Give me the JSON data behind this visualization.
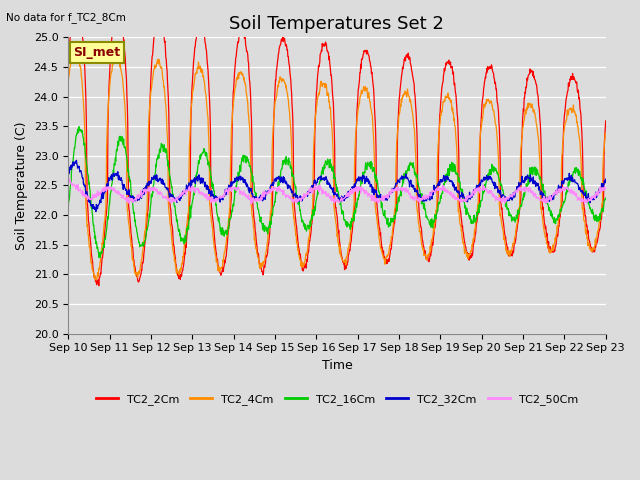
{
  "title": "Soil Temperatures Set 2",
  "no_data_label": "No data for f_TC2_8Cm",
  "ylabel": "Soil Temperature (C)",
  "xlabel": "Time",
  "legend_label": "SI_met",
  "ylim": [
    20.0,
    25.0
  ],
  "yticks": [
    20.0,
    20.5,
    21.0,
    21.5,
    22.0,
    22.5,
    23.0,
    23.5,
    24.0,
    24.5,
    25.0
  ],
  "xtick_labels": [
    "Sep 10",
    "Sep 11",
    "Sep 12",
    "Sep 13",
    "Sep 14",
    "Sep 15",
    "Sep 16",
    "Sep 17",
    "Sep 18",
    "Sep 19",
    "Sep 20",
    "Sep 21",
    "Sep 22",
    "Sep 23"
  ],
  "series": [
    {
      "label": "TC2_2Cm",
      "color": "#FF0000"
    },
    {
      "label": "TC2_4Cm",
      "color": "#FF8C00"
    },
    {
      "label": "TC2_16Cm",
      "color": "#00CC00"
    },
    {
      "label": "TC2_32Cm",
      "color": "#0000CC"
    },
    {
      "label": "TC2_50Cm",
      "color": "#FF88FF"
    }
  ],
  "bg_color": "#DCDCDC",
  "title_fontsize": 13,
  "axis_fontsize": 9,
  "tick_fontsize": 8
}
